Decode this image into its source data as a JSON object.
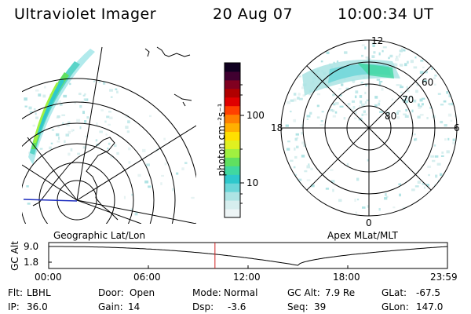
{
  "header": {
    "title": "Ultraviolet Imager",
    "date": "20 Aug 07",
    "time": "10:00:34 UT"
  },
  "colorbar": {
    "unit_label": "photon cm⁻²s⁻¹",
    "ticks": [
      "100",
      "10"
    ],
    "colors": [
      "#eef5f6",
      "#d6eeee",
      "#aee4e4",
      "#6ad6d8",
      "#2ec8cc",
      "#40d8a0",
      "#60e060",
      "#a0f040",
      "#e0f020",
      "#ffe000",
      "#ffb000",
      "#ff8000",
      "#ff4000",
      "#e00000",
      "#b00000",
      "#800020",
      "#400030",
      "#100020"
    ]
  },
  "left_panel": {
    "label": "Geographic Lat/Lon"
  },
  "right_panel": {
    "label": "Apex MLat/MLT",
    "mlt_labels": {
      "top": "12",
      "bottom": "0",
      "left": "18",
      "right": "6"
    },
    "lat_labels": [
      "60",
      "70",
      "80"
    ]
  },
  "altitude_plot": {
    "ylabel": "GC Alt",
    "yticks": [
      "9.0",
      "1.8"
    ],
    "xticks": [
      "00:00",
      "06:00",
      "12:00",
      "18:00",
      "23:59"
    ],
    "current_time_fraction": 0.417
  },
  "status": {
    "row1": {
      "flt_label": "Flt:",
      "flt": "LBHL",
      "door_label": "Door:",
      "door": "Open",
      "mode_label": "Mode:",
      "mode": "Normal",
      "gcalt_label": "GC Alt:",
      "gcalt": "7.9 Re",
      "glat_label": "GLat:",
      "glat": "-67.5"
    },
    "row2": {
      "ip_label": "IP:",
      "ip": "36.0",
      "gain_label": "Gain:",
      "gain": "14",
      "dsp_label": "Dsp:",
      "dsp": "-3.6",
      "seq_label": "Seq:",
      "seq": "39",
      "glon_label": "GLon:",
      "glon": "147.0"
    }
  }
}
